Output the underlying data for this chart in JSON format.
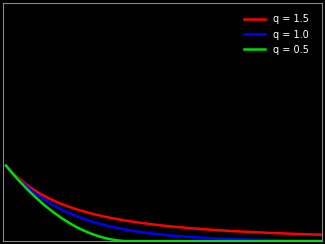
{
  "background_color": "#000000",
  "curves": [
    {
      "q": 1.5,
      "color": "#ff0000",
      "label": "q = 1.5",
      "linewidth": 1.8
    },
    {
      "q": 1.0,
      "color": "#0000ff",
      "label": "q = 1.0",
      "linewidth": 1.8
    },
    {
      "q": 0.5,
      "color": "#00dd00",
      "label": "q = 0.5",
      "linewidth": 1.8
    }
  ],
  "x_start": 0.05,
  "x_end": 5.0,
  "ylim": [
    0.0,
    3.0
  ],
  "xlim": [
    0.0,
    5.0
  ],
  "legend_fontsize": 7,
  "figsize": [
    3.25,
    2.44
  ],
  "dpi": 100,
  "spine_color": "#888888"
}
